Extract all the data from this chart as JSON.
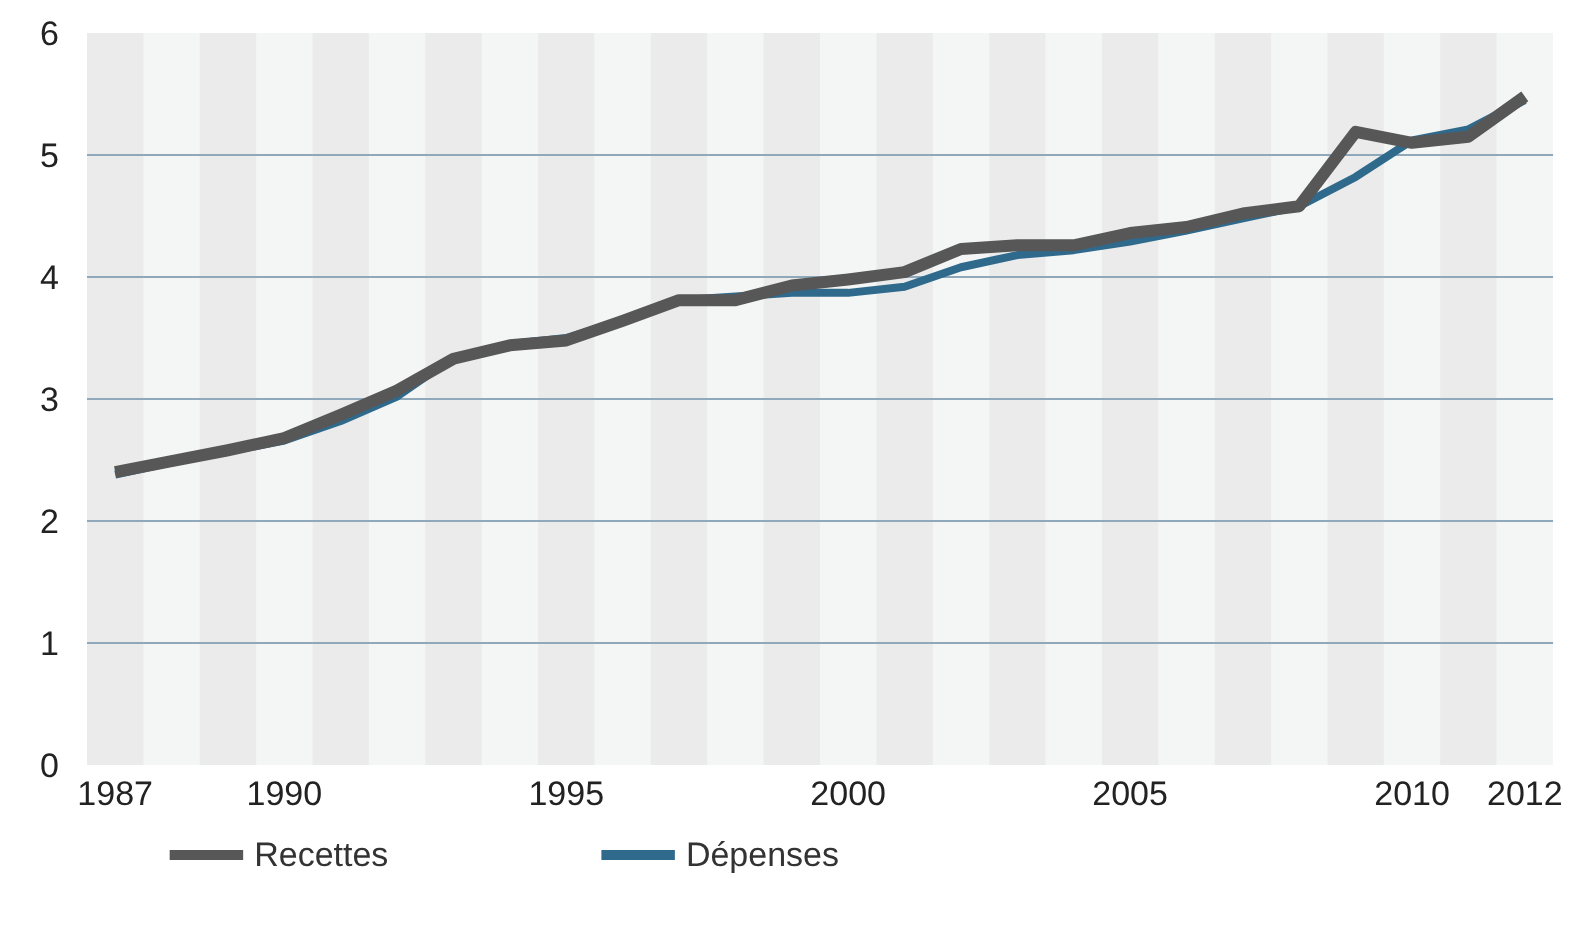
{
  "chart_data": {
    "type": "line",
    "x": [
      1987,
      1988,
      1989,
      1990,
      1991,
      1992,
      1993,
      1994,
      1995,
      1996,
      1997,
      1998,
      1999,
      2000,
      2001,
      2002,
      2003,
      2004,
      2005,
      2006,
      2007,
      2008,
      2009,
      2010,
      2011,
      2012
    ],
    "series": [
      {
        "name": "Dépenses",
        "color": "#2f6a8c",
        "values": [
          2.38,
          2.48,
          2.57,
          2.66,
          2.82,
          3.02,
          3.34,
          3.45,
          3.5,
          3.64,
          3.81,
          3.84,
          3.87,
          3.87,
          3.92,
          4.08,
          4.18,
          4.22,
          4.29,
          4.38,
          4.48,
          4.58,
          4.82,
          5.12,
          5.21,
          5.45
        ]
      },
      {
        "name": "Recettes",
        "color": "#575757",
        "values": [
          2.4,
          2.49,
          2.58,
          2.68,
          2.87,
          3.07,
          3.33,
          3.44,
          3.48,
          3.64,
          3.81,
          3.81,
          3.93,
          3.98,
          4.04,
          4.23,
          4.26,
          4.26,
          4.36,
          4.41,
          4.52,
          4.58,
          5.19,
          5.1,
          5.15,
          5.48
        ]
      }
    ],
    "xlim": [
      1986.5,
      2012.5
    ],
    "xticks": [
      1987,
      1990,
      1995,
      2000,
      2005,
      2010,
      2012
    ],
    "ylim": [
      0,
      6
    ],
    "yticks": [
      0,
      1,
      2,
      3,
      4,
      5,
      6
    ],
    "grid": "y",
    "legend": "bottom",
    "marker": "none",
    "line_style": "solid",
    "bands": [
      {
        "axis": "x",
        "from": 1986.5,
        "to": 1987.5,
        "color": "#ebebeb"
      },
      {
        "axis": "x",
        "from": 1988.5,
        "to": 1989.5,
        "color": "#ebebeb"
      },
      {
        "axis": "x",
        "from": 1990.5,
        "to": 1991.5,
        "color": "#ebebeb"
      },
      {
        "axis": "x",
        "from": 1992.5,
        "to": 1993.5,
        "color": "#ebebeb"
      },
      {
        "axis": "x",
        "from": 1994.5,
        "to": 1995.5,
        "color": "#ebebeb"
      },
      {
        "axis": "x",
        "from": 1996.5,
        "to": 1997.5,
        "color": "#ebebeb"
      },
      {
        "axis": "x",
        "from": 1998.5,
        "to": 1999.5,
        "color": "#ebebeb"
      },
      {
        "axis": "x",
        "from": 2000.5,
        "to": 2001.5,
        "color": "#ebebeb"
      },
      {
        "axis": "x",
        "from": 2002.5,
        "to": 2003.5,
        "color": "#ebebeb"
      },
      {
        "axis": "x",
        "from": 2004.5,
        "to": 2005.5,
        "color": "#ebebeb"
      },
      {
        "axis": "x",
        "from": 2006.5,
        "to": 2007.5,
        "color": "#ebebeb"
      },
      {
        "axis": "x",
        "from": 2008.5,
        "to": 2009.5,
        "color": "#ebebeb"
      },
      {
        "axis": "x",
        "from": 2010.5,
        "to": 2011.5,
        "color": "#ebebeb"
      }
    ]
  }
}
